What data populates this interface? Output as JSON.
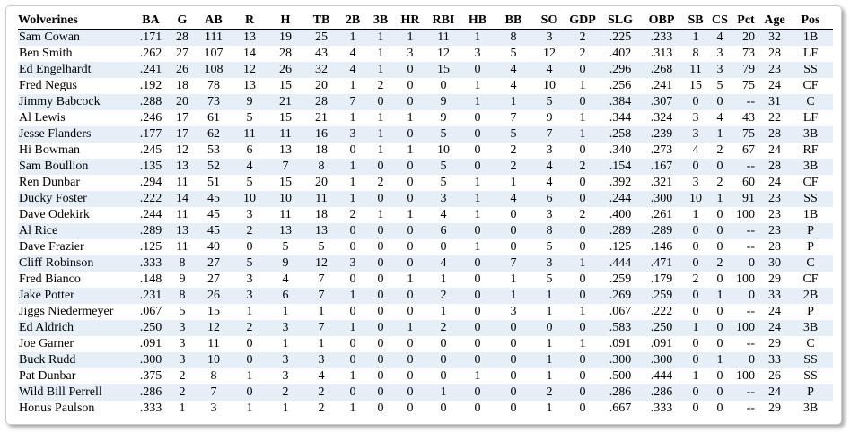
{
  "table": {
    "team": "Wolverines",
    "columns": [
      "BA",
      "G",
      "AB",
      "R",
      "H",
      "TB",
      "2B",
      "3B",
      "HR",
      "RBI",
      "HB",
      "BB",
      "SO",
      "GDP",
      "SLG",
      "OBP",
      "SB",
      "CS",
      "Pct",
      "Age",
      "Pos"
    ],
    "rows": [
      [
        "Sam Cowan",
        ".171",
        "28",
        "111",
        "13",
        "19",
        "25",
        "1",
        "1",
        "1",
        "11",
        "1",
        "8",
        "3",
        "2",
        ".225",
        ".233",
        "1",
        "4",
        "20",
        "32",
        "1B"
      ],
      [
        "Ben Smith",
        ".262",
        "27",
        "107",
        "14",
        "28",
        "43",
        "4",
        "1",
        "3",
        "12",
        "3",
        "5",
        "12",
        "2",
        ".402",
        ".313",
        "8",
        "3",
        "73",
        "28",
        "LF"
      ],
      [
        "Ed Engelhardt",
        ".241",
        "26",
        "108",
        "12",
        "26",
        "32",
        "4",
        "1",
        "0",
        "15",
        "0",
        "4",
        "4",
        "0",
        ".296",
        ".268",
        "11",
        "3",
        "79",
        "23",
        "SS"
      ],
      [
        "Fred Negus",
        ".192",
        "18",
        "78",
        "13",
        "15",
        "20",
        "1",
        "2",
        "0",
        "0",
        "1",
        "4",
        "10",
        "1",
        ".256",
        ".241",
        "15",
        "5",
        "75",
        "24",
        "CF"
      ],
      [
        "Jimmy Babcock",
        ".288",
        "20",
        "73",
        "9",
        "21",
        "28",
        "7",
        "0",
        "0",
        "9",
        "1",
        "1",
        "5",
        "0",
        ".384",
        ".307",
        "0",
        "0",
        "--",
        "31",
        "C"
      ],
      [
        "Al Lewis",
        ".246",
        "17",
        "61",
        "5",
        "15",
        "21",
        "1",
        "1",
        "1",
        "9",
        "0",
        "7",
        "9",
        "1",
        ".344",
        ".324",
        "3",
        "4",
        "43",
        "22",
        "LF"
      ],
      [
        "Jesse Flanders",
        ".177",
        "17",
        "62",
        "11",
        "11",
        "16",
        "3",
        "1",
        "0",
        "5",
        "0",
        "5",
        "7",
        "1",
        ".258",
        ".239",
        "3",
        "1",
        "75",
        "28",
        "3B"
      ],
      [
        "Hi Bowman",
        ".245",
        "12",
        "53",
        "6",
        "13",
        "18",
        "0",
        "1",
        "1",
        "10",
        "0",
        "2",
        "3",
        "0",
        ".340",
        ".273",
        "4",
        "2",
        "67",
        "24",
        "RF"
      ],
      [
        "Sam Boullion",
        ".135",
        "13",
        "52",
        "4",
        "7",
        "8",
        "1",
        "0",
        "0",
        "5",
        "0",
        "2",
        "4",
        "2",
        ".154",
        ".167",
        "0",
        "0",
        "--",
        "28",
        "3B"
      ],
      [
        "Ren Dunbar",
        ".294",
        "11",
        "51",
        "5",
        "15",
        "20",
        "1",
        "2",
        "0",
        "5",
        "1",
        "1",
        "4",
        "0",
        ".392",
        ".321",
        "3",
        "2",
        "60",
        "24",
        "CF"
      ],
      [
        "Ducky Foster",
        ".222",
        "14",
        "45",
        "10",
        "10",
        "11",
        "1",
        "0",
        "0",
        "3",
        "1",
        "4",
        "6",
        "0",
        ".244",
        ".300",
        "10",
        "1",
        "91",
        "23",
        "SS"
      ],
      [
        "Dave Odekirk",
        ".244",
        "11",
        "45",
        "3",
        "11",
        "18",
        "2",
        "1",
        "1",
        "4",
        "1",
        "0",
        "3",
        "2",
        ".400",
        ".261",
        "1",
        "0",
        "100",
        "23",
        "1B"
      ],
      [
        "Al Rice",
        ".289",
        "13",
        "45",
        "2",
        "13",
        "13",
        "0",
        "0",
        "0",
        "6",
        "0",
        "0",
        "8",
        "0",
        ".289",
        ".289",
        "0",
        "0",
        "--",
        "23",
        "P"
      ],
      [
        "Dave Frazier",
        ".125",
        "11",
        "40",
        "0",
        "5",
        "5",
        "0",
        "0",
        "0",
        "0",
        "1",
        "0",
        "5",
        "0",
        ".125",
        ".146",
        "0",
        "0",
        "--",
        "28",
        "P"
      ],
      [
        "Cliff Robinson",
        ".333",
        "8",
        "27",
        "5",
        "9",
        "12",
        "3",
        "0",
        "0",
        "4",
        "0",
        "7",
        "3",
        "1",
        ".444",
        ".471",
        "0",
        "2",
        "0",
        "30",
        "C"
      ],
      [
        "Fred Bianco",
        ".148",
        "9",
        "27",
        "3",
        "4",
        "7",
        "0",
        "0",
        "1",
        "1",
        "0",
        "1",
        "5",
        "0",
        ".259",
        ".179",
        "2",
        "0",
        "100",
        "29",
        "CF"
      ],
      [
        "Jake Potter",
        ".231",
        "8",
        "26",
        "3",
        "6",
        "7",
        "1",
        "0",
        "0",
        "2",
        "0",
        "1",
        "1",
        "0",
        ".269",
        ".259",
        "0",
        "1",
        "0",
        "33",
        "2B"
      ],
      [
        "Jiggs Niedermeyer",
        ".067",
        "5",
        "15",
        "1",
        "1",
        "1",
        "0",
        "0",
        "0",
        "1",
        "0",
        "3",
        "1",
        "1",
        ".067",
        ".222",
        "0",
        "0",
        "--",
        "24",
        "P"
      ],
      [
        "Ed Aldrich",
        ".250",
        "3",
        "12",
        "2",
        "3",
        "7",
        "1",
        "0",
        "1",
        "2",
        "0",
        "0",
        "0",
        "0",
        ".583",
        ".250",
        "1",
        "0",
        "100",
        "24",
        "3B"
      ],
      [
        "Joe Garner",
        ".091",
        "3",
        "11",
        "0",
        "1",
        "1",
        "0",
        "0",
        "0",
        "0",
        "0",
        "0",
        "1",
        "1",
        ".091",
        ".091",
        "0",
        "0",
        "--",
        "29",
        "C"
      ],
      [
        "Buck Rudd",
        ".300",
        "3",
        "10",
        "0",
        "3",
        "3",
        "0",
        "0",
        "0",
        "0",
        "0",
        "0",
        "1",
        "0",
        ".300",
        ".300",
        "0",
        "1",
        "0",
        "33",
        "SS"
      ],
      [
        "Pat Dunbar",
        ".375",
        "2",
        "8",
        "1",
        "3",
        "4",
        "1",
        "0",
        "0",
        "0",
        "1",
        "0",
        "1",
        "0",
        ".500",
        ".444",
        "1",
        "0",
        "100",
        "26",
        "SS"
      ],
      [
        "Wild Bill Perrell",
        ".286",
        "2",
        "7",
        "0",
        "2",
        "2",
        "0",
        "0",
        "0",
        "1",
        "0",
        "0",
        "2",
        "0",
        ".286",
        ".286",
        "0",
        "0",
        "--",
        "24",
        "P"
      ],
      [
        "Honus Paulson",
        ".333",
        "1",
        "3",
        "1",
        "1",
        "2",
        "1",
        "0",
        "0",
        "0",
        "0",
        "0",
        "1",
        "0",
        ".667",
        ".333",
        "0",
        "0",
        "--",
        "29",
        "3B"
      ]
    ]
  }
}
